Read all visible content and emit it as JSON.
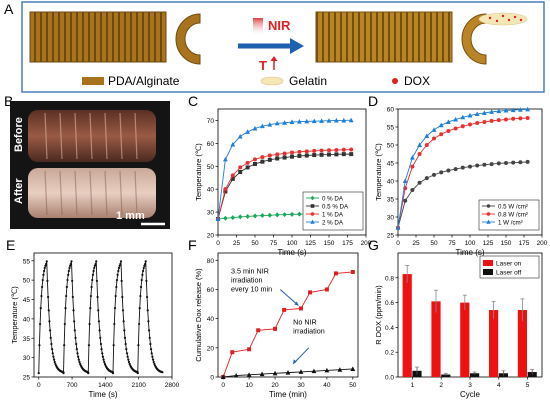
{
  "panelA": {
    "letter": "A",
    "nir_label": "NIR",
    "temp_label": "T",
    "legend": {
      "pda": "PDA/Alginate",
      "gelatin": "Gelatin",
      "dox": "DOX"
    },
    "colors": {
      "tube": "#a8731c",
      "tube_dark": "#6e4a10",
      "gelatin": "#f6e7b8",
      "dox": "#e02020",
      "arrow": "#1f5fb0",
      "border": "#4a7fb8"
    }
  },
  "panelB": {
    "letter": "B",
    "before": "Before",
    "after": "After",
    "scale": "1 mm"
  },
  "chart_data": [
    {
      "id": "C",
      "type": "line",
      "xlabel": "Time (s)",
      "ylabel": "Temperature (℃)",
      "xlim": [
        0,
        200
      ],
      "ylim": [
        20,
        75
      ],
      "xticks": [
        0,
        25,
        50,
        75,
        100,
        125,
        150,
        175,
        200
      ],
      "yticks": [
        20,
        30,
        40,
        50,
        60,
        70
      ],
      "legend_position": "bottom-right",
      "legend_unit": "DA",
      "series": [
        {
          "name": "0 %",
          "color": "#1aa85a",
          "marker": "diamond",
          "x": [
            0,
            10,
            20,
            30,
            40,
            50,
            60,
            70,
            80,
            90,
            100,
            110,
            120,
            130,
            140,
            150,
            160,
            170,
            180
          ],
          "y": [
            27,
            27.3,
            27.6,
            27.9,
            28.1,
            28.3,
            28.5,
            28.6,
            28.8,
            28.9,
            29,
            29.1,
            29.2,
            29.2,
            29.3,
            29.3,
            29.4,
            29.4,
            29.5
          ]
        },
        {
          "name": "0.5 %",
          "color": "#333333",
          "marker": "square",
          "x": [
            0,
            10,
            20,
            30,
            40,
            50,
            60,
            70,
            80,
            90,
            100,
            110,
            120,
            130,
            140,
            150,
            160,
            170,
            180
          ],
          "y": [
            27,
            39,
            44.5,
            47.5,
            49.5,
            51,
            52,
            52.8,
            53.4,
            53.8,
            54.2,
            54.5,
            54.7,
            54.9,
            55,
            55.1,
            55.2,
            55.3,
            55.3
          ]
        },
        {
          "name": "1 %",
          "color": "#e83030",
          "marker": "circle",
          "x": [
            0,
            10,
            20,
            30,
            40,
            50,
            60,
            70,
            80,
            90,
            100,
            110,
            120,
            130,
            140,
            150,
            160,
            170,
            180
          ],
          "y": [
            27,
            40,
            46,
            49.5,
            51.5,
            53,
            54,
            54.7,
            55.2,
            55.6,
            56,
            56.3,
            56.5,
            56.7,
            56.9,
            57,
            57.1,
            57.2,
            57.3
          ]
        },
        {
          "name": "2 %",
          "color": "#1e7fd8",
          "marker": "triangle",
          "x": [
            0,
            10,
            20,
            30,
            40,
            50,
            60,
            70,
            80,
            90,
            100,
            110,
            120,
            130,
            140,
            150,
            160,
            170,
            180
          ],
          "y": [
            27,
            53,
            59.5,
            63,
            65,
            66.5,
            67.5,
            68.2,
            68.7,
            69,
            69.3,
            69.5,
            69.6,
            69.7,
            69.8,
            69.9,
            70,
            70,
            70.1
          ]
        }
      ]
    },
    {
      "id": "D",
      "type": "line",
      "xlabel": "Time (s)",
      "ylabel": "Temperature (℃)",
      "xlim": [
        0,
        200
      ],
      "ylim": [
        25,
        60
      ],
      "xticks": [
        0,
        25,
        50,
        75,
        100,
        125,
        150,
        175,
        200
      ],
      "yticks": [
        25,
        30,
        35,
        40,
        45,
        50,
        55,
        60
      ],
      "legend_position": "bottom-right",
      "legend_unit": "W /cm²",
      "series": [
        {
          "name": "0.5",
          "color": "#444444",
          "marker": "circle",
          "x": [
            0,
            10,
            20,
            30,
            40,
            50,
            60,
            70,
            80,
            90,
            100,
            110,
            120,
            130,
            140,
            150,
            160,
            170,
            180
          ],
          "y": [
            27,
            34.5,
            37.5,
            39.5,
            40.8,
            41.7,
            42.4,
            42.9,
            43.3,
            43.7,
            44,
            44.3,
            44.5,
            44.7,
            44.9,
            45,
            45.1,
            45.2,
            45.3
          ]
        },
        {
          "name": "0.8",
          "color": "#e83030",
          "marker": "circle",
          "x": [
            0,
            10,
            20,
            30,
            40,
            50,
            60,
            70,
            80,
            90,
            100,
            110,
            120,
            130,
            140,
            150,
            160,
            170,
            180
          ],
          "y": [
            27,
            38,
            44,
            47.5,
            50,
            51.8,
            53,
            53.9,
            54.6,
            55.2,
            55.7,
            56.1,
            56.4,
            56.7,
            56.9,
            57.1,
            57.3,
            57.4,
            57.5
          ]
        },
        {
          "name": "1",
          "color": "#1e7fd8",
          "marker": "triangle",
          "x": [
            0,
            10,
            20,
            30,
            40,
            50,
            60,
            70,
            80,
            90,
            100,
            110,
            120,
            130,
            140,
            150,
            160,
            170,
            180
          ],
          "y": [
            27,
            40,
            46.5,
            50,
            52.5,
            54.2,
            55.5,
            56.4,
            57.1,
            57.7,
            58.2,
            58.6,
            58.9,
            59.2,
            59.4,
            59.6,
            59.7,
            59.8,
            59.9
          ]
        }
      ]
    },
    {
      "id": "E",
      "type": "line",
      "xlabel": "Time (s)",
      "ylabel": "Temperature (℃)",
      "xlim": [
        -100,
        2800
      ],
      "ylim": [
        25,
        57
      ],
      "xticks": [
        0,
        700,
        1400,
        2100,
        2800
      ],
      "yticks": [
        25,
        30,
        35,
        40,
        45,
        50,
        55
      ],
      "series": [
        {
          "name": "",
          "color": "#111111",
          "marker": "circle",
          "cycles": 5,
          "period": 520,
          "start": 0,
          "t_min": 26,
          "t_max": 55.5
        }
      ]
    },
    {
      "id": "F",
      "type": "line",
      "xlabel": "Time (min)",
      "ylabel": "Cumulative Dox release (%)",
      "xlim": [
        -2,
        52
      ],
      "ylim": [
        0,
        85
      ],
      "xticks": [
        0,
        10,
        20,
        30,
        40,
        50
      ],
      "yticks": [
        0,
        20,
        40,
        60,
        80
      ],
      "annotations": [
        {
          "lines": [
            "3.5 min NIR",
            "irradiation",
            "every 10 min"
          ],
          "x": 3,
          "y": 71
        },
        {
          "lines": [
            "No NIR",
            "irradiation"
          ],
          "x": 27,
          "y": 36
        }
      ],
      "series": [
        {
          "name": "NIR",
          "color": "#e02020",
          "marker": "square",
          "x": [
            0,
            3.5,
            10,
            13.5,
            20,
            23.5,
            30,
            33.5,
            40,
            43.5,
            50
          ],
          "y": [
            0,
            17,
            19,
            32,
            33,
            46,
            47,
            58,
            60,
            71,
            72
          ]
        },
        {
          "name": "No NIR",
          "color": "#111111",
          "marker": "triangle",
          "x": [
            0,
            5,
            10,
            15,
            20,
            25,
            30,
            35,
            40,
            45,
            50
          ],
          "y": [
            0,
            1,
            1.5,
            2,
            2.5,
            3,
            3.5,
            4,
            4.5,
            5,
            5.5
          ]
        }
      ]
    },
    {
      "id": "G",
      "type": "bar",
      "xlabel": "Cycle",
      "ylabel": "R DOX (ppm/min)",
      "ylim": [
        0,
        1.0
      ],
      "yticks": [
        0,
        0.2,
        0.4,
        0.6,
        0.8
      ],
      "categories": [
        "1",
        "2",
        "3",
        "4",
        "5"
      ],
      "legend_position": "top-right",
      "series": [
        {
          "name": "Laser on",
          "color": "#ee1111",
          "values": [
            0.83,
            0.61,
            0.6,
            0.54,
            0.54
          ],
          "errors": [
            0.07,
            0.09,
            0.06,
            0.07,
            0.09
          ]
        },
        {
          "name": "Laser off",
          "color": "#111111",
          "values": [
            0.05,
            0.02,
            0.03,
            0.03,
            0.04
          ],
          "errors": [
            0.03,
            0.01,
            0.01,
            0.02,
            0.02
          ]
        }
      ]
    }
  ]
}
